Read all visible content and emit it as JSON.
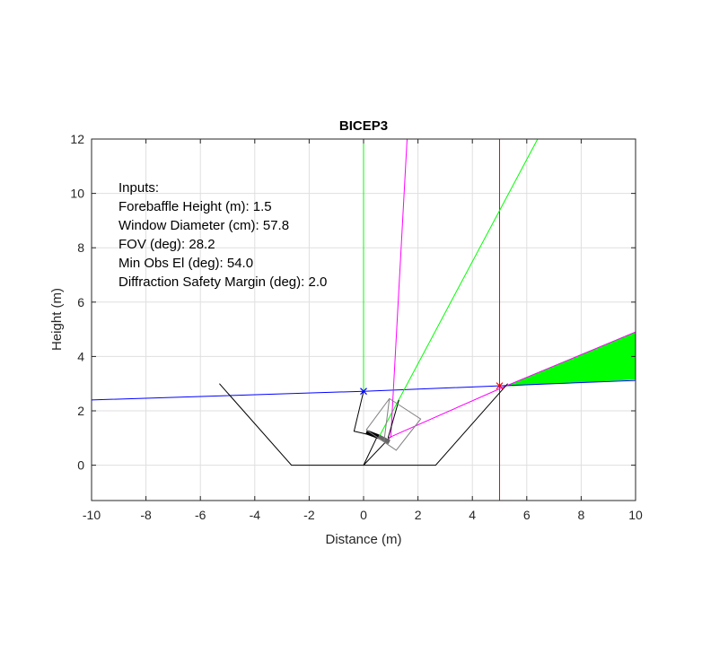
{
  "chart_data": {
    "type": "line",
    "title": "BICEP3",
    "xlabel": "Distance (m)",
    "ylabel": "Height (m)",
    "xlim": [
      -10,
      10
    ],
    "ylim": [
      -1.3,
      12
    ],
    "xticks": [
      -10,
      -8,
      -6,
      -4,
      -2,
      0,
      2,
      4,
      6,
      8,
      10
    ],
    "yticks": [
      0,
      2,
      4,
      6,
      8,
      10,
      12
    ],
    "grid": true,
    "annotation_lines": [
      "Inputs:",
      "Forebaffle Height (m): 1.5",
      "Window Diameter (cm): 57.8",
      "FOV (deg): 28.2",
      "Min Obs El (deg): 54.0",
      "Diffraction Safety Margin (deg): 2.0"
    ],
    "filled_regions": [
      {
        "color": "#00ff00",
        "points": [
          [
            5.2,
            2.9
          ],
          [
            10,
            4.9
          ],
          [
            10,
            3.15
          ]
        ]
      }
    ],
    "series": [
      {
        "color": "#0000ff",
        "points": [
          [
            -10,
            2.4
          ],
          [
            0,
            2.72
          ],
          [
            5.0,
            2.92
          ],
          [
            10,
            3.12
          ]
        ]
      },
      {
        "color": "#ff0000",
        "points": [
          [
            5.0,
            -1.3
          ],
          [
            5.0,
            12
          ]
        ]
      },
      {
        "color": "#00ff00",
        "points": [
          [
            0,
            2.72
          ],
          [
            0,
            12
          ]
        ]
      },
      {
        "color": "#00ff00",
        "points": [
          [
            0.6,
            1.1
          ],
          [
            6.4,
            12
          ]
        ]
      },
      {
        "color": "#ff00ff",
        "points": [
          [
            1.0,
            1.0
          ],
          [
            1.6,
            12
          ]
        ]
      },
      {
        "color": "#ff00ff",
        "points": [
          [
            0.9,
            1.0
          ],
          [
            5.2,
            2.9
          ]
        ]
      },
      {
        "color": "#ff00ff",
        "points": [
          [
            5.2,
            2.9
          ],
          [
            10,
            4.9
          ]
        ]
      },
      {
        "color": "#000000",
        "points": [
          [
            -5.3,
            3.0
          ],
          [
            -2.65,
            0
          ],
          [
            2.65,
            0
          ],
          [
            5.3,
            3.0
          ]
        ]
      },
      {
        "color": "#000000",
        "points": [
          [
            0,
            2.72
          ],
          [
            -0.35,
            1.25
          ],
          [
            0.3,
            1.1
          ]
        ]
      },
      {
        "color": "#000000",
        "points": [
          [
            0.9,
            1.0
          ],
          [
            1.3,
            2.4
          ]
        ]
      },
      {
        "color": "#000000",
        "points": [
          [
            0,
            0
          ],
          [
            0.5,
            1.05
          ]
        ]
      },
      {
        "color": "#000000",
        "points": [
          [
            0,
            0
          ],
          [
            0.95,
            1.0
          ]
        ]
      },
      {
        "color": "#000000",
        "points": [
          [
            0.1,
            1.22
          ],
          [
            0.55,
            1.05
          ]
        ],
        "width": 5
      },
      {
        "color": "#666666",
        "points": [
          [
            0.55,
            1.05
          ],
          [
            0.95,
            0.85
          ]
        ],
        "width": 5
      },
      {
        "color": "#808080",
        "points": [
          [
            0.1,
            1.3
          ],
          [
            0.95,
            2.45
          ],
          [
            2.1,
            1.7
          ],
          [
            1.2,
            0.55
          ],
          [
            0.1,
            1.3
          ]
        ]
      },
      {
        "color": "#808080",
        "points": [
          [
            0.95,
            2.45
          ],
          [
            0.75,
            0.85
          ]
        ]
      }
    ],
    "markers": [
      {
        "color": "#0000ff",
        "symbol": "x",
        "x": 0,
        "y": 2.72
      },
      {
        "color": "#ff0000",
        "symbol": "x",
        "x": 5.0,
        "y": 2.92
      }
    ]
  }
}
